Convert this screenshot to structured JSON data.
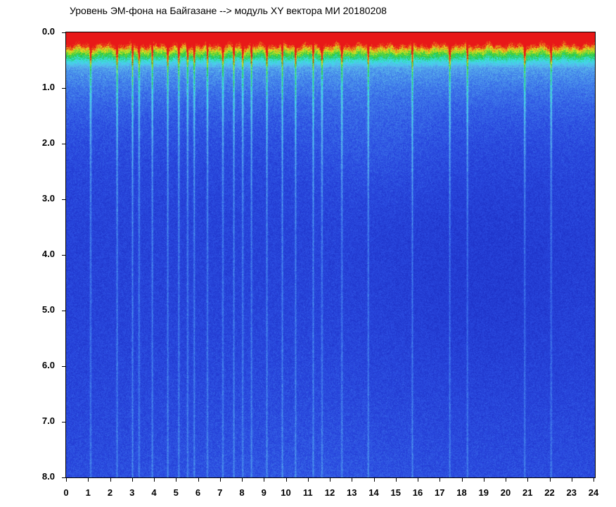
{
  "chart_data": {
    "type": "heatmap",
    "title": "Уровень ЭМ-фона на Байгазане  -->  модуль XY вектора МИ  20180208",
    "xlabel": "",
    "ylabel": "",
    "x_ticks": [
      "0",
      "1",
      "2",
      "3",
      "4",
      "5",
      "6",
      "7",
      "8",
      "9",
      "10",
      "11",
      "12",
      "13",
      "14",
      "15",
      "16",
      "17",
      "18",
      "19",
      "20",
      "21",
      "22",
      "23",
      "24"
    ],
    "y_ticks": [
      "0.0",
      "1.0",
      "2.0",
      "3.0",
      "4.0",
      "5.0",
      "6.0",
      "7.0",
      "8.0"
    ],
    "xlim": [
      0,
      24
    ],
    "ylim": [
      0,
      8
    ],
    "y_inverted": true,
    "grid": false,
    "colormap": [
      "#1e32c8",
      "#2a4ae0",
      "#3e78ea",
      "#5ab4ec",
      "#3de0e8",
      "#20c840",
      "#e8e820",
      "#e81818"
    ],
    "vertical_bright_streaks_hours": [
      1.1,
      2.3,
      3.0,
      3.3,
      3.9,
      4.6,
      5.1,
      5.5,
      5.8,
      6.4,
      7.1,
      7.6,
      8.0,
      8.4,
      9.1,
      9.8,
      10.4,
      11.2,
      11.6,
      12.5,
      13.7,
      15.7,
      17.4,
      18.2,
      20.8,
      22.0
    ]
  }
}
